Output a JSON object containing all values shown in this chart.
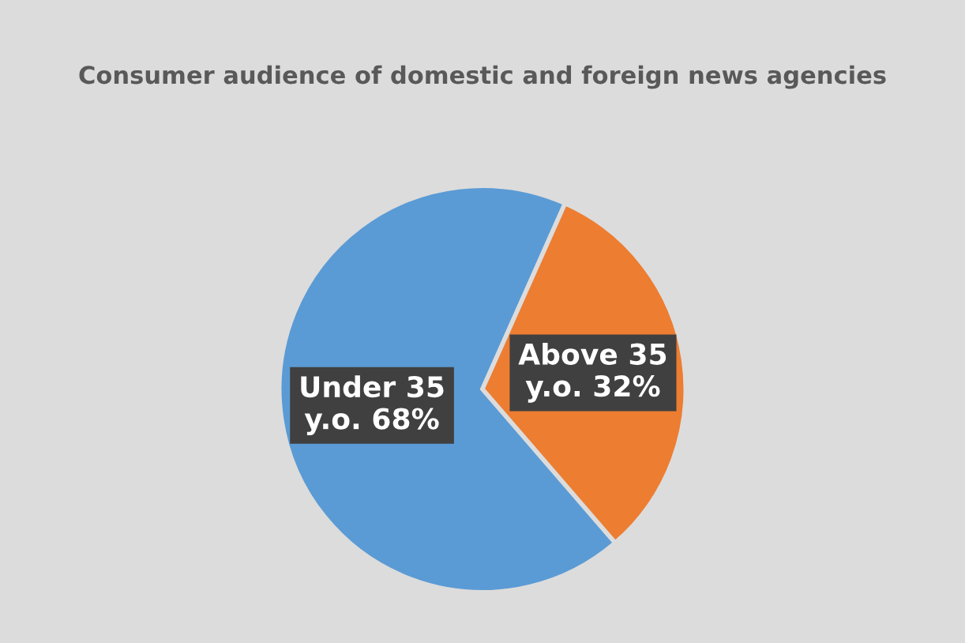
{
  "chart_data": {
    "type": "pie",
    "title": "Consumer audience of domestic and foreign news agencies",
    "categories": [
      "Under 35\ny.o.",
      "Above 35\ny.o."
    ],
    "values": [
      68,
      32
    ],
    "value_labels": [
      "68%",
      "32%"
    ],
    "colors": [
      "#5b9bd5",
      "#ed7d31"
    ],
    "legend": false
  }
}
